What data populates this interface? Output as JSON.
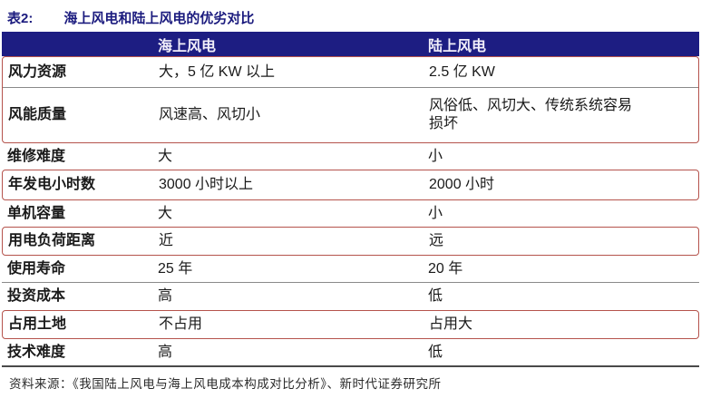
{
  "page": {
    "title_tag": "表2:",
    "title_text": "海上风电和陆上风电的优劣对比",
    "source": "资料来源：《我国陆上风电与海上风电成本构成对比分析》、新时代证券研究所"
  },
  "chart_data": {
    "type": "table",
    "title": "海上风电和陆上风电的优劣对比",
    "columns": [
      "",
      "海上风电",
      "陆上风电"
    ],
    "rows": [
      {
        "label": "风力资源",
        "offshore": "大，5 亿 KW 以上",
        "onshore": "2.5 亿 KW"
      },
      {
        "label": "风能质量",
        "offshore": "风速高、风切小",
        "onshore": "风俗低、风切大、传统系统容易损坏"
      },
      {
        "label": "维修难度",
        "offshore": "大",
        "onshore": "小"
      },
      {
        "label": "年发电小时数",
        "offshore": "3000 小时以上",
        "onshore": "2000 小时"
      },
      {
        "label": "单机容量",
        "offshore": "大",
        "onshore": "小"
      },
      {
        "label": "用电负荷距离",
        "offshore": "近",
        "onshore": "远"
      },
      {
        "label": "使用寿命",
        "offshore": "25 年",
        "onshore": "20 年"
      },
      {
        "label": "投资成本",
        "offshore": "高",
        "onshore": "低"
      },
      {
        "label": "占用土地",
        "offshore": "不占用",
        "onshore": "占用大"
      },
      {
        "label": "技术难度",
        "offshore": "高",
        "onshore": "低"
      }
    ],
    "highlighted_rows": [
      "风力资源",
      "风能质量",
      "年发电小时数",
      "用电负荷距离",
      "占用土地"
    ],
    "layout": {
      "legend": "none",
      "grid": "horizontal-lines"
    }
  },
  "colors": {
    "header_bg": "#1d1d82",
    "title_text": "#1b1b7e",
    "highlight_border": "#b5534c",
    "grid_line": "#8a8a8a",
    "table_bottom_border": "#4a4a4a"
  }
}
